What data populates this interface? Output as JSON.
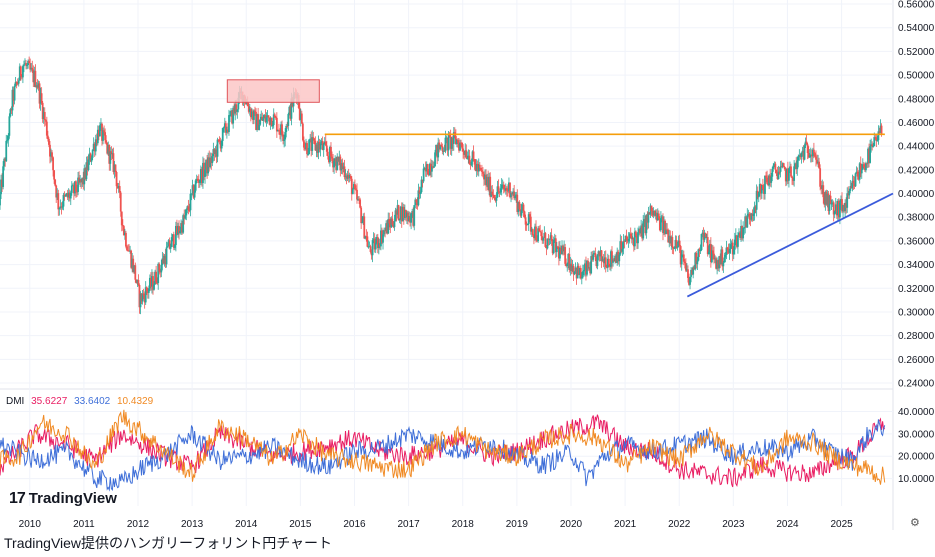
{
  "caption": "TradingView提供のハンガリーフォリント円チャート",
  "logo_text": "TradingView",
  "settings_icon": "settings-icon",
  "colors": {
    "up": "#26a69a",
    "down": "#ef5350",
    "resistance": "#f59e0b",
    "support": "#3b5bdb",
    "box_fill": "#fbc7c7",
    "box_stroke": "#e0545a",
    "plus_di": "#e91e63",
    "minus_di": "#3f6fd8",
    "adx": "#f08a24"
  },
  "chart_data": [
    {
      "type": "candlestick",
      "ylim": [
        0.24,
        0.56
      ],
      "yticks": [
        "0.24000",
        "0.26000",
        "0.28000",
        "0.30000",
        "0.32000",
        "0.34000",
        "0.36000",
        "0.38000",
        "0.40000",
        "0.42000",
        "0.44000",
        "0.46000",
        "0.48000",
        "0.50000",
        "0.52000",
        "0.54000",
        "0.56000"
      ],
      "xlim": [
        2009.45,
        2025.95
      ],
      "xticks": [
        "2010",
        "2011",
        "2012",
        "2013",
        "2014",
        "2015",
        "2016",
        "2017",
        "2018",
        "2019",
        "2020",
        "2021",
        "2022",
        "2023",
        "2024",
        "2025"
      ],
      "price_path": [
        [
          2009.45,
          0.39
        ],
        [
          2009.7,
          0.48
        ],
        [
          2009.9,
          0.51
        ],
        [
          2010.15,
          0.495
        ],
        [
          2010.35,
          0.45
        ],
        [
          2010.55,
          0.39
        ],
        [
          2010.8,
          0.4
        ],
        [
          2011.0,
          0.41
        ],
        [
          2011.3,
          0.455
        ],
        [
          2011.6,
          0.42
        ],
        [
          2011.75,
          0.37
        ],
        [
          2011.95,
          0.335
        ],
        [
          2012.05,
          0.31
        ],
        [
          2012.3,
          0.325
        ],
        [
          2012.6,
          0.355
        ],
        [
          2012.9,
          0.38
        ],
        [
          2013.1,
          0.41
        ],
        [
          2013.4,
          0.43
        ],
        [
          2013.7,
          0.46
        ],
        [
          2013.95,
          0.485
        ],
        [
          2014.2,
          0.46
        ],
        [
          2014.5,
          0.465
        ],
        [
          2014.7,
          0.45
        ],
        [
          2014.95,
          0.488
        ],
        [
          2015.1,
          0.44
        ],
        [
          2015.4,
          0.44
        ],
        [
          2015.6,
          0.43
        ],
        [
          2015.85,
          0.42
        ],
        [
          2016.1,
          0.39
        ],
        [
          2016.3,
          0.35
        ],
        [
          2016.6,
          0.37
        ],
        [
          2016.85,
          0.385
        ],
        [
          2017.1,
          0.38
        ],
        [
          2017.3,
          0.415
        ],
        [
          2017.6,
          0.44
        ],
        [
          2017.9,
          0.445
        ],
        [
          2018.1,
          0.435
        ],
        [
          2018.3,
          0.42
        ],
        [
          2018.6,
          0.4
        ],
        [
          2018.9,
          0.405
        ],
        [
          2019.1,
          0.385
        ],
        [
          2019.4,
          0.365
        ],
        [
          2019.7,
          0.355
        ],
        [
          2019.95,
          0.345
        ],
        [
          2020.2,
          0.33
        ],
        [
          2020.5,
          0.345
        ],
        [
          2020.8,
          0.345
        ],
        [
          2021.05,
          0.36
        ],
        [
          2021.3,
          0.365
        ],
        [
          2021.5,
          0.385
        ],
        [
          2021.75,
          0.37
        ],
        [
          2022.0,
          0.355
        ],
        [
          2022.2,
          0.325
        ],
        [
          2022.45,
          0.365
        ],
        [
          2022.7,
          0.34
        ],
        [
          2023.0,
          0.355
        ],
        [
          2023.3,
          0.38
        ],
        [
          2023.55,
          0.405
        ],
        [
          2023.8,
          0.42
        ],
        [
          2024.1,
          0.415
        ],
        [
          2024.3,
          0.435
        ],
        [
          2024.5,
          0.44
        ],
        [
          2024.7,
          0.395
        ],
        [
          2024.9,
          0.385
        ],
        [
          2025.1,
          0.39
        ],
        [
          2025.3,
          0.415
        ],
        [
          2025.5,
          0.43
        ],
        [
          2025.75,
          0.452
        ]
      ],
      "resistance_line": {
        "from": [
          2015.45,
          0.45
        ],
        "to": [
          2025.8,
          0.45
        ]
      },
      "support_line": {
        "from": [
          2022.15,
          0.313
        ],
        "to": [
          2025.95,
          0.4
        ]
      },
      "highlight_box": {
        "x": [
          2013.65,
          2015.35
        ],
        "y": [
          0.477,
          0.496
        ]
      }
    },
    {
      "type": "line",
      "title": "DMI",
      "legend_values": [
        "35.6227",
        "33.6402",
        "10.4329"
      ],
      "ylim": [
        4,
        42
      ],
      "yticks": [
        "10.0000",
        "20.0000",
        "30.0000",
        "40.0000"
      ],
      "series_anchors": [
        {
          "key": "plus_di",
          "points": [
            [
              2009.45,
              15
            ],
            [
              2010.1,
              30
            ],
            [
              2010.7,
              25
            ],
            [
              2011.2,
              18
            ],
            [
              2011.7,
              30
            ],
            [
              2012.1,
              25
            ],
            [
              2012.5,
              20
            ],
            [
              2013.0,
              15
            ],
            [
              2013.5,
              30
            ],
            [
              2014.0,
              25
            ],
            [
              2014.5,
              20
            ],
            [
              2015.0,
              22
            ],
            [
              2015.5,
              25
            ],
            [
              2016.0,
              28
            ],
            [
              2016.5,
              22
            ],
            [
              2017.0,
              20
            ],
            [
              2017.5,
              23
            ],
            [
              2018.0,
              27
            ],
            [
              2018.5,
              20
            ],
            [
              2019.0,
              22
            ],
            [
              2019.5,
              28
            ],
            [
              2020.0,
              32
            ],
            [
              2020.5,
              35
            ],
            [
              2021.0,
              24
            ],
            [
              2021.5,
              22
            ],
            [
              2022.0,
              14
            ],
            [
              2022.5,
              12
            ],
            [
              2023.0,
              10
            ],
            [
              2023.5,
              16
            ],
            [
              2024.0,
              13
            ],
            [
              2024.5,
              12
            ],
            [
              2024.8,
              17
            ],
            [
              2025.2,
              20
            ],
            [
              2025.5,
              28
            ],
            [
              2025.8,
              35.6
            ]
          ]
        },
        {
          "key": "minus_di",
          "points": [
            [
              2009.45,
              25
            ],
            [
              2010.1,
              18
            ],
            [
              2010.7,
              22
            ],
            [
              2011.2,
              10
            ],
            [
              2011.7,
              8
            ],
            [
              2012.1,
              15
            ],
            [
              2012.5,
              20
            ],
            [
              2013.0,
              30
            ],
            [
              2013.5,
              18
            ],
            [
              2014.0,
              20
            ],
            [
              2014.5,
              24
            ],
            [
              2015.0,
              18
            ],
            [
              2015.5,
              15
            ],
            [
              2016.0,
              22
            ],
            [
              2016.5,
              24
            ],
            [
              2017.0,
              30
            ],
            [
              2017.5,
              26
            ],
            [
              2018.0,
              22
            ],
            [
              2018.5,
              26
            ],
            [
              2019.0,
              20
            ],
            [
              2019.5,
              16
            ],
            [
              2020.0,
              22
            ],
            [
              2020.3,
              10
            ],
            [
              2020.6,
              20
            ],
            [
              2021.0,
              25
            ],
            [
              2021.5,
              22
            ],
            [
              2022.0,
              25
            ],
            [
              2022.5,
              28
            ],
            [
              2023.0,
              20
            ],
            [
              2023.5,
              24
            ],
            [
              2024.0,
              22
            ],
            [
              2024.5,
              28
            ],
            [
              2024.8,
              22
            ],
            [
              2025.2,
              18
            ],
            [
              2025.5,
              30
            ],
            [
              2025.8,
              33.6
            ]
          ]
        },
        {
          "key": "adx",
          "points": [
            [
              2009.45,
              18
            ],
            [
              2009.8,
              20
            ],
            [
              2010.2,
              35
            ],
            [
              2010.7,
              30
            ],
            [
              2011.2,
              15
            ],
            [
              2011.7,
              38
            ],
            [
              2012.1,
              30
            ],
            [
              2012.5,
              22
            ],
            [
              2013.0,
              12
            ],
            [
              2013.5,
              33
            ],
            [
              2014.0,
              28
            ],
            [
              2014.5,
              18
            ],
            [
              2015.0,
              30
            ],
            [
              2015.5,
              20
            ],
            [
              2016.0,
              18
            ],
            [
              2016.5,
              15
            ],
            [
              2017.0,
              14
            ],
            [
              2017.5,
              26
            ],
            [
              2018.0,
              30
            ],
            [
              2018.5,
              22
            ],
            [
              2019.0,
              20
            ],
            [
              2019.5,
              27
            ],
            [
              2020.0,
              30
            ],
            [
              2020.5,
              28
            ],
            [
              2021.0,
              16
            ],
            [
              2021.5,
              24
            ],
            [
              2022.0,
              18
            ],
            [
              2022.5,
              30
            ],
            [
              2023.0,
              22
            ],
            [
              2023.5,
              14
            ],
            [
              2024.0,
              28
            ],
            [
              2024.5,
              26
            ],
            [
              2024.8,
              20
            ],
            [
              2025.2,
              16
            ],
            [
              2025.5,
              14
            ],
            [
              2025.8,
              10.4
            ]
          ]
        }
      ]
    }
  ]
}
